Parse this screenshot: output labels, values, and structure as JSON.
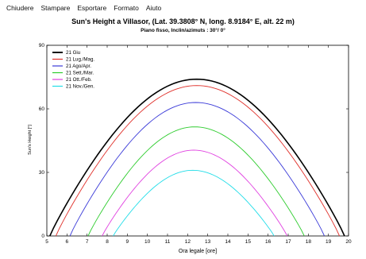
{
  "menu": {
    "items": [
      "Chiudere",
      "Stampare",
      "Esportare",
      "Formato",
      "Aiuto"
    ]
  },
  "chart_data": {
    "type": "line",
    "title": "Sun's Height a Villasor, (Lat. 39.3808° N, long. 8.9184° E, alt. 22 m)",
    "subtitle": "Piano fisso, Inclin/azimuts : 30°/ 0°",
    "xlabel": "Ora legale [ore]",
    "ylabel": "Sun's Height [°]",
    "xlim": [
      5,
      20
    ],
    "ylim": [
      0,
      90
    ],
    "xticks": [
      5,
      6,
      7,
      8,
      9,
      10,
      11,
      12,
      13,
      14,
      15,
      16,
      17,
      18,
      19,
      20
    ],
    "yticks": [
      0,
      30,
      60,
      90
    ],
    "legend_position": "top-left",
    "grid": false,
    "series": [
      {
        "name": "21 Giu",
        "color": "#000000",
        "peak_hour": 12.45,
        "peak": 74,
        "rise": 5.15,
        "set": 19.8,
        "width": 1.6
      },
      {
        "name": "21 Lug./Mag.",
        "color": "#e0302a",
        "peak_hour": 12.45,
        "peak": 71,
        "rise": 5.45,
        "set": 19.55,
        "width": 0.9
      },
      {
        "name": "21 Ago/Apr.",
        "color": "#3a3ad8",
        "peak_hour": 12.4,
        "peak": 63,
        "rise": 6.15,
        "set": 18.8,
        "width": 0.9
      },
      {
        "name": "21 Sett./Mar.",
        "color": "#2ecc2e",
        "peak_hour": 12.35,
        "peak": 51.5,
        "rise": 7.05,
        "set": 17.8,
        "width": 0.9
      },
      {
        "name": "21 Ott./Feb.",
        "color": "#e040e0",
        "peak_hour": 12.3,
        "peak": 40.5,
        "rise": 7.75,
        "set": 16.95,
        "width": 0.9
      },
      {
        "name": "21 Nov./Gen.",
        "color": "#22dde8",
        "peak_hour": 12.25,
        "peak": 31,
        "rise": 8.3,
        "set": 16.3,
        "width": 0.9
      }
    ]
  }
}
